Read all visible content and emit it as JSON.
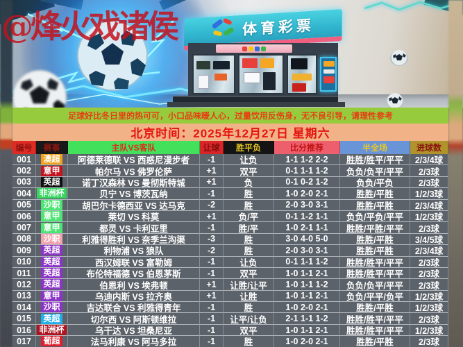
{
  "watermark": "@烽火戏诸侯",
  "poster": {
    "sign_text": "体育彩票"
  },
  "notice": "足球好比冬日里的热可可，小口品味暖人心，过量饮用反伤身，无不良引导，请理性参考",
  "date_line": "北京时间：2025年12月27日 星期六",
  "table": {
    "headers": [
      "编号",
      "赛事",
      "主队VS客队",
      "让球",
      "胜平负",
      "比分推荐",
      "半全场",
      "进球数"
    ],
    "league_colors": {
      "orange": "#f0a11c",
      "crimson": "#c41420",
      "black": "#101010",
      "green": "#3fdd68",
      "pink": "#f2a3ad",
      "purple": "#8c33c8",
      "blue": "#22aee8",
      "darkred": "#b01320",
      "red": "#e01e2e"
    },
    "rows": [
      {
        "id": "001",
        "league": "澳超",
        "league_color": "#f0a11c",
        "match": "阿德莱德联 VS 西惑尼漫步者",
        "handicap": "-1",
        "wdl": "让负",
        "scores": "1-1 1-2 2-2",
        "half_full": "胜胜/胜平/平平",
        "goals": "2/3/4球"
      },
      {
        "id": "002",
        "league": "意甲",
        "league_color": "#c41420",
        "match": "帕尔马 VS 佛罗伦萨",
        "handicap": "+1",
        "wdl": "双平",
        "scores": "0-1 1-1 1-2",
        "half_full": "负负/负平/平平",
        "goals": "2/3球"
      },
      {
        "id": "003",
        "league": "英超",
        "league_color": "#101010",
        "match": "诺丁汉森林 VS 曼彻斯特城",
        "handicap": "+1",
        "wdl": "负",
        "scores": "0-1 0-2 1-2",
        "half_full": "负负/平负",
        "goals": "2/3球"
      },
      {
        "id": "004",
        "league": "非洲杯",
        "league_color": "#35d65e",
        "match": "贝宁 VS 博茨瓦纳",
        "handicap": "-1",
        "wdl": "胜",
        "scores": "1-0 2-0 2-1",
        "half_full": "胜胜/平胜",
        "goals": "1/2/3球"
      },
      {
        "id": "005",
        "league": "沙职",
        "league_color": "#4ce472",
        "match": "胡巴尔卡德西亚 VS 达马克",
        "handicap": "-2",
        "wdl": "胜",
        "scores": "2-0 3-0 3-1",
        "half_full": "胜胜/平胜",
        "goals": "2/3/4球"
      },
      {
        "id": "006",
        "league": "意甲",
        "league_color": "#4ce472",
        "match": "莱切 VS 科莫",
        "handicap": "+1",
        "wdl": "负/平",
        "scores": "0-1 1-2 1-1",
        "half_full": "负负/平负/平平",
        "goals": "1/2/3球"
      },
      {
        "id": "007",
        "league": "意甲",
        "league_color": "#4ce472",
        "match": "都灵 VS 卡利亚里",
        "handicap": "-1",
        "wdl": "胜/平",
        "scores": "1-0 2-1 1-1",
        "half_full": "胜胜/平胜/平平",
        "goals": "2/3球"
      },
      {
        "id": "008",
        "league": "沙职",
        "league_color": "#f2a3ad",
        "match": "利雅得胜利 VS 奈季兰沟渠",
        "handicap": "-3",
        "wdl": "胜",
        "scores": "3-0 4-0 5-0",
        "half_full": "胜胜/平胜",
        "goals": "3/4/5球"
      },
      {
        "id": "009",
        "league": "英超",
        "league_color": "#8c33c8",
        "match": "利物浦 VS 狼队",
        "handicap": "-2",
        "wdl": "胜",
        "scores": "2-0 3-0 3-1",
        "half_full": "胜胜/平胜",
        "goals": "2/3/4球"
      },
      {
        "id": "010",
        "league": "英超",
        "league_color": "#8c33c8",
        "match": "西汉姆联 VS 富勒姆",
        "handicap": "-1",
        "wdl": "让负",
        "scores": "0-1 1-1 1-2",
        "half_full": "胜胜/胜平/平平",
        "goals": "2/3球"
      },
      {
        "id": "011",
        "league": "英超",
        "league_color": "#8c33c8",
        "match": "布伦特福德 VS 伯恩茅斯",
        "handicap": "-1",
        "wdl": "双平",
        "scores": "1-0 1-1 2-1",
        "half_full": "胜胜/胜平/平平",
        "goals": "2/3球"
      },
      {
        "id": "012",
        "league": "英超",
        "league_color": "#8c33c8",
        "match": "伯恩利 VS 埃弗顿",
        "handicap": "+1",
        "wdl": "让胜/让平",
        "scores": "1-0 1-1 1-2",
        "half_full": "负负/负平/平平",
        "goals": "2/3球"
      },
      {
        "id": "013",
        "league": "意甲",
        "league_color": "#8c33c8",
        "match": "乌迪内斯 VS 拉齐奥",
        "handicap": "+1",
        "wdl": "让胜",
        "scores": "1-0 1-1 2-1",
        "half_full": "负负/平平/负平",
        "goals": "1/2/3球"
      },
      {
        "id": "014",
        "league": "沙职",
        "league_color": "#8c33c8",
        "match": "吉达联合 VS 利雅得青年",
        "handicap": "-1",
        "wdl": "胜",
        "scores": "1-0 2-0 2-1",
        "half_full": "胜胜/平胜",
        "goals": "1/2/3球"
      },
      {
        "id": "015",
        "league": "英超",
        "league_color": "#22aee8",
        "match": "切尔西 VS 阿斯顿维拉",
        "handicap": "-1",
        "wdl": "让平/让负",
        "scores": "2-1 1-1 1-2",
        "half_full": "胜胜/胜平/平平",
        "goals": "2/3球"
      },
      {
        "id": "016",
        "league": "非洲杯",
        "league_color": "#b01320",
        "match": "乌干达 VS 坦桑尼亚",
        "handicap": "-1",
        "wdl": "双平",
        "scores": "1-0 1-1 2-1",
        "half_full": "胜胜/胜平/平平",
        "goals": "1/2/3球"
      },
      {
        "id": "017",
        "league": "葡超",
        "league_color": "#e01e2e",
        "match": "法马利康 VS 阿马多拉",
        "handicap": "-1",
        "wdl": "胜",
        "scores": "1-0 2-0 2-1",
        "half_full": "胜胜/平胜",
        "goals": "2/3球"
      }
    ]
  }
}
